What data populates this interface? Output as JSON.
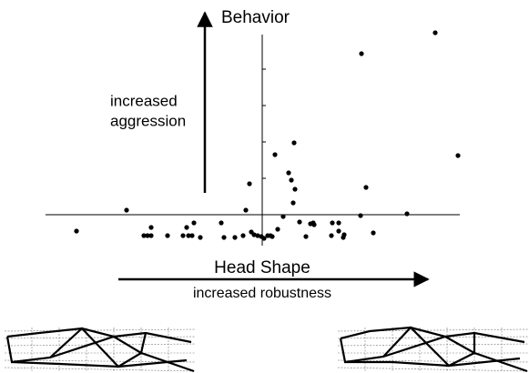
{
  "chart_data": {
    "type": "scatter",
    "title": "Behavior",
    "x_label": "Head Shape",
    "x_annotation": "increased robustness",
    "y_annotation": [
      "increased",
      "aggression"
    ],
    "color": "#000000",
    "xlim": [
      -23.8,
      21.7
    ],
    "ylim": [
      -3.4,
      19.8
    ],
    "yticks": [
      4,
      8,
      12,
      16
    ],
    "x": [
      -20.4,
      -14.9,
      -13.0,
      -12.6,
      -12.2,
      -12.2,
      -10.4,
      -8.7,
      -8.3,
      -8.1,
      -7.7,
      -7.5,
      -6.8,
      -4.5,
      -4.2,
      -3.0,
      -2.1,
      -1.8,
      -1.4,
      -1.2,
      -0.9,
      -0.5,
      -0.1,
      0.2,
      0.6,
      0.9,
      1.1,
      1.4,
      1.7,
      2.3,
      2.9,
      3.2,
      3.4,
      3.5,
      3.6,
      4.1,
      4.8,
      5.3,
      5.6,
      5.7,
      7.7,
      7.6,
      8.4,
      8.4,
      8.9,
      9.0,
      10.8,
      10.9,
      11.4,
      12.2,
      15.9,
      19.0,
      21.5
    ],
    "y": [
      -1.8,
      0.5,
      -2.3,
      -2.3,
      -2.3,
      -1.4,
      -2.3,
      -2.3,
      -1.4,
      -2.3,
      -2.3,
      -0.9,
      -2.5,
      -0.9,
      -2.5,
      -2.5,
      -2.3,
      0.5,
      3.4,
      -1.9,
      -2.2,
      -2.3,
      -2.4,
      -2.6,
      -2.3,
      -2.3,
      -2.4,
      6.6,
      -1.6,
      -0.2,
      4.6,
      3.8,
      1.3,
      7.9,
      2.8,
      -0.8,
      -2.4,
      -1.0,
      -0.9,
      -1.1,
      -0.9,
      -2.3,
      -1.8,
      -0.9,
      -2.5,
      -2.2,
      -0.1,
      17.7,
      3.0,
      -2.0,
      0.1,
      20.0,
      6.5
    ]
  }
}
